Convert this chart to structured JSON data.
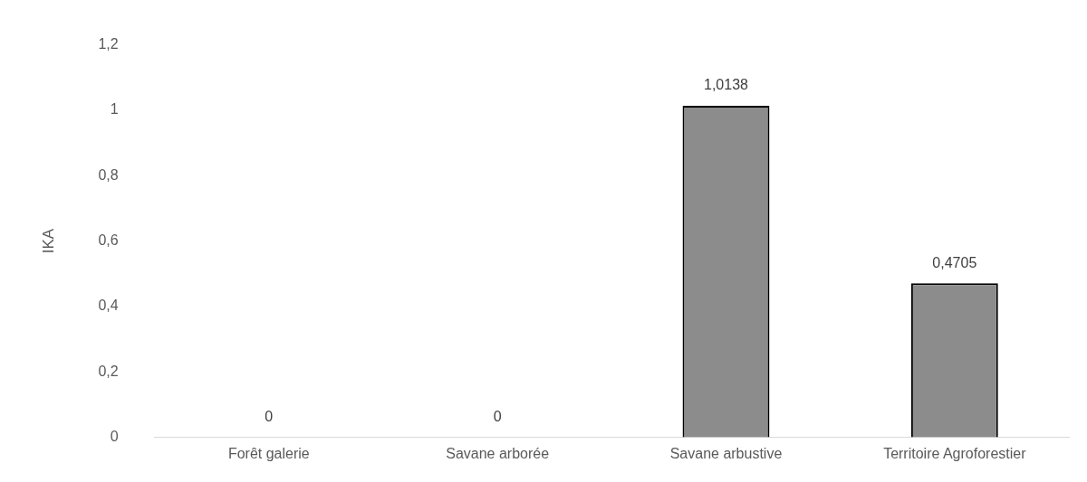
{
  "chart_data": {
    "type": "bar",
    "ylabel": "IKA",
    "categories": [
      "Forêt galerie",
      "Savane arborée",
      "Savane arbustive",
      "Territoire Agroforestier"
    ],
    "values": [
      0,
      0,
      1.0138,
      0.4705
    ],
    "color": "#8c8c8c",
    "value_labels": [
      "0",
      "0",
      "1,0138",
      "0,4705"
    ],
    "ylim": [
      0,
      1.2
    ],
    "yticks": [
      {
        "value": 0,
        "label": "0"
      },
      {
        "value": 0.2,
        "label": "0,2"
      },
      {
        "value": 0.4,
        "label": "0,4"
      },
      {
        "value": 0.6,
        "label": "0,6"
      },
      {
        "value": 0.8,
        "label": "0,8"
      },
      {
        "value": 1,
        "label": "1"
      },
      {
        "value": 1.2,
        "label": "1,2"
      }
    ],
    "grid": false,
    "legend": false
  }
}
